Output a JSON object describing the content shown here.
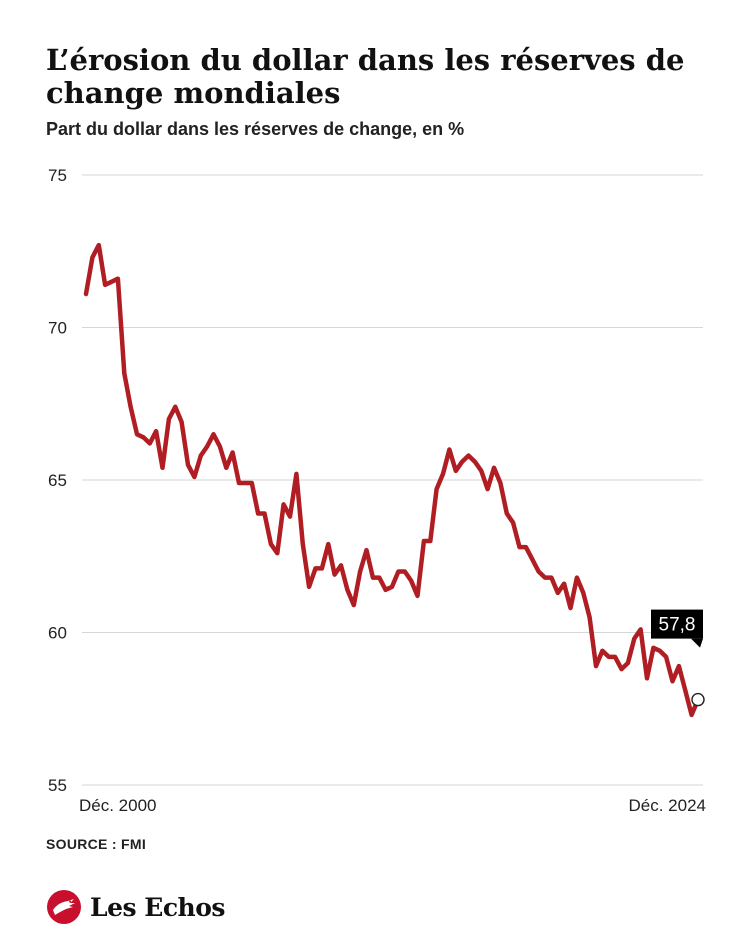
{
  "header": {
    "title": "L’érosion du dollar dans les réserves de change mondiales",
    "subtitle": "Part du dollar dans les réserves de change, en %"
  },
  "footer": {
    "source": "SOURCE : FMI",
    "brand": "Les Echos",
    "brand_icon": "les-echos-bird-logo"
  },
  "colors": {
    "line": "#b01e23",
    "grid": "#d6d6d6",
    "label_bg": "#000000",
    "brand": "#c8102e"
  },
  "chart_data": {
    "type": "line",
    "title": "L’érosion du dollar dans les réserves de change mondiales",
    "subtitle": "Part du dollar dans les réserves de change, en %",
    "ylim": [
      55,
      75
    ],
    "y_ticks": [
      55,
      60,
      65,
      70,
      75
    ],
    "x_tick_labels": [
      "Déc. 2000",
      "Déc. 2024"
    ],
    "grid": true,
    "last_value_label": "57,8",
    "series": [
      {
        "values": [
          71.1,
          72.3,
          72.7,
          71.4,
          71.5,
          71.6,
          68.5,
          67.4,
          66.5,
          66.4,
          66.2,
          66.6,
          65.4,
          67.0,
          67.4,
          66.9,
          65.5,
          65.1,
          65.8,
          66.1,
          66.5,
          66.1,
          65.4,
          65.9,
          64.9,
          64.9,
          64.9,
          63.9,
          63.9,
          62.9,
          62.6,
          64.2,
          63.8,
          65.2,
          62.9,
          61.5,
          62.1,
          62.1,
          62.9,
          61.9,
          62.2,
          61.4,
          60.9,
          62.0,
          62.7,
          61.8,
          61.8,
          61.4,
          61.5,
          62.0,
          62.0,
          61.7,
          61.2,
          63.0,
          63.0,
          64.7,
          65.2,
          66.0,
          65.3,
          65.6,
          65.8,
          65.6,
          65.3,
          64.7,
          65.4,
          64.9,
          63.9,
          63.6,
          62.8,
          62.8,
          62.4,
          62.0,
          61.8,
          61.8,
          61.3,
          61.6,
          60.8,
          61.8,
          61.3,
          60.5,
          58.9,
          59.4,
          59.2,
          59.2,
          58.8,
          59.0,
          59.8,
          60.1,
          58.5,
          59.5,
          59.4,
          59.2,
          58.4,
          58.9,
          58.1,
          57.3,
          57.8
        ]
      }
    ]
  }
}
